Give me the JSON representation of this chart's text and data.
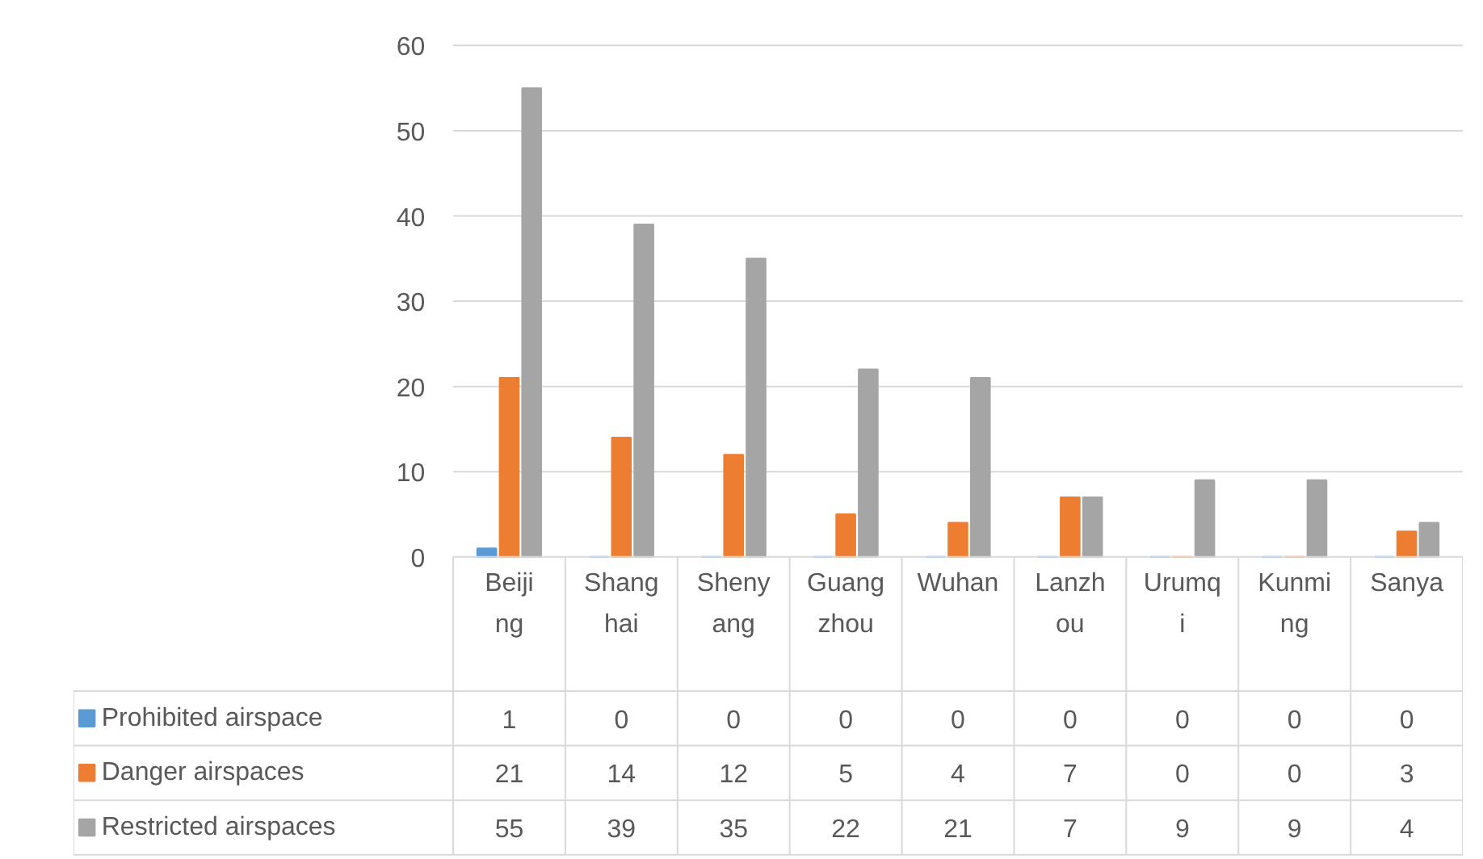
{
  "chart_data": {
    "type": "bar",
    "categories": [
      "Beijing",
      "Shanghai",
      "Shenyang",
      "Guangzhou",
      "Wuhan",
      "Lanzhou",
      "Urumqi",
      "Kunming",
      "Sanya"
    ],
    "series": [
      {
        "name": "Prohibited airspace",
        "color": "#5b9bd5",
        "values": [
          1,
          0,
          0,
          0,
          0,
          0,
          0,
          0,
          0
        ]
      },
      {
        "name": "Danger airspaces",
        "color": "#ed7d31",
        "values": [
          21,
          14,
          12,
          5,
          4,
          7,
          0,
          0,
          3
        ]
      },
      {
        "name": "Restricted airspaces",
        "color": "#a5a5a5",
        "values": [
          55,
          39,
          35,
          22,
          21,
          7,
          9,
          9,
          4
        ]
      }
    ],
    "ylim": [
      0,
      60
    ],
    "yticks": [
      0,
      10,
      20,
      30,
      40,
      50,
      60
    ],
    "grid": "y",
    "legend": "bottom",
    "data_labels": true
  }
}
